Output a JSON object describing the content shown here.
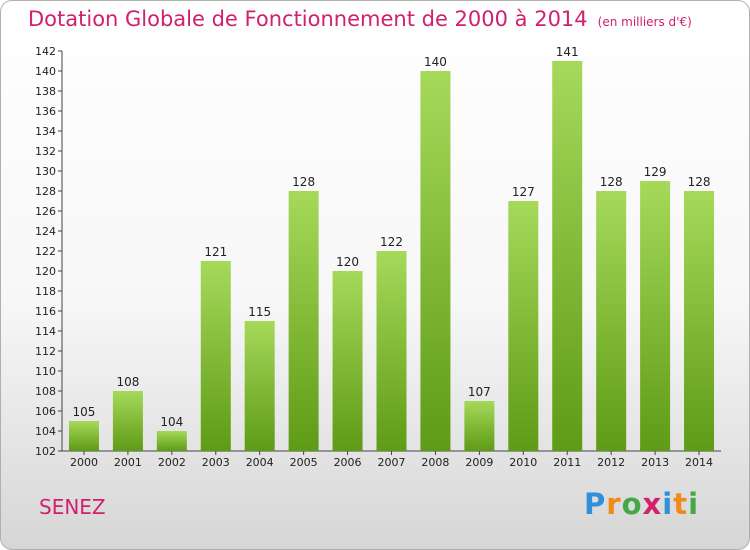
{
  "title": "Dotation Globale de Fonctionnement de 2000 à 2014",
  "subtitle": "(en milliers d'€)",
  "commune": "SENEZ",
  "logo": {
    "letters": [
      "P",
      "r",
      "o",
      "x",
      "i",
      "t",
      "i"
    ],
    "colors": [
      "#2f8fd8",
      "#f08a1c",
      "#43a845",
      "#d0206e",
      "#2f8fd8",
      "#f08a1c",
      "#43a845"
    ]
  },
  "colors": {
    "bar_light": "#a6d95a",
    "bar_dark": "#5e9b16",
    "title": "#d0206e"
  },
  "chart_data": {
    "type": "bar",
    "categories": [
      "2000",
      "2001",
      "2002",
      "2003",
      "2004",
      "2005",
      "2006",
      "2007",
      "2008",
      "2009",
      "2010",
      "2011",
      "2012",
      "2013",
      "2014"
    ],
    "values": [
      105,
      108,
      104,
      121,
      115,
      128,
      120,
      122,
      140,
      107,
      127,
      141,
      128,
      129,
      128
    ],
    "title": "Dotation Globale de Fonctionnement de 2000 à 2014",
    "subtitle": "(en milliers d'€)",
    "xlabel": "",
    "ylabel": "",
    "ylim": [
      102,
      142
    ],
    "yticks": [
      102,
      104,
      106,
      108,
      110,
      112,
      114,
      116,
      118,
      120,
      122,
      124,
      126,
      128,
      130,
      132,
      134,
      136,
      138,
      140,
      142
    ],
    "grid": false,
    "legend": "none"
  }
}
